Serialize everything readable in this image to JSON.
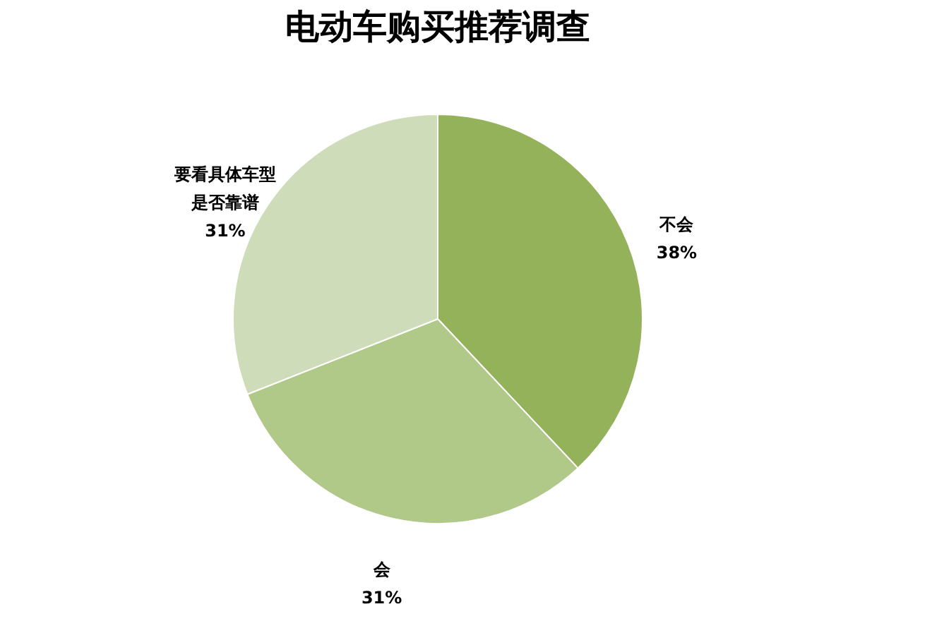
{
  "chart_data": {
    "type": "pie",
    "title": "电动车购买推荐调查",
    "categories": [
      "不会",
      "会",
      "要看具体车型是否靠谱"
    ],
    "values": [
      38,
      31,
      31
    ],
    "colors": [
      "#93b25a",
      "#b0c888",
      "#cfdcb9"
    ],
    "value_labels": [
      "38%",
      "31%",
      "31%"
    ],
    "legend": false
  }
}
